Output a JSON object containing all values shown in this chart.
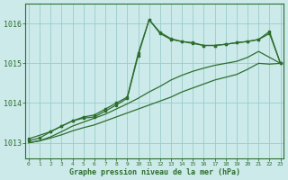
{
  "bg_color": "#cceaea",
  "grid_color": "#99cccc",
  "line_color": "#2d6e2d",
  "title": "Graphe pression niveau de la mer (hPa)",
  "xlabel_ticks": [
    0,
    1,
    2,
    3,
    4,
    5,
    6,
    7,
    8,
    9,
    10,
    11,
    12,
    13,
    14,
    15,
    16,
    17,
    18,
    19,
    20,
    21,
    22,
    23
  ],
  "yticks": [
    1013,
    1014,
    1015,
    1016
  ],
  "ylim": [
    1012.6,
    1016.5
  ],
  "xlim": [
    -0.3,
    23.3
  ],
  "line1_x": [
    0,
    1,
    2,
    3,
    4,
    5,
    6,
    7,
    8,
    9,
    10,
    11,
    12,
    13,
    14,
    15,
    16,
    17,
    18,
    19,
    20,
    21,
    22,
    23
  ],
  "line1_y": [
    1013.0,
    1013.05,
    1013.12,
    1013.2,
    1013.3,
    1013.38,
    1013.45,
    1013.55,
    1013.65,
    1013.75,
    1013.85,
    1013.95,
    1014.05,
    1014.15,
    1014.28,
    1014.38,
    1014.48,
    1014.58,
    1014.65,
    1014.72,
    1014.85,
    1015.0,
    1014.98,
    1015.0
  ],
  "line2_x": [
    0,
    1,
    2,
    3,
    4,
    5,
    6,
    7,
    8,
    9,
    10,
    11,
    12,
    13,
    14,
    15,
    16,
    17,
    18,
    19,
    20,
    21,
    22,
    23
  ],
  "line2_y": [
    1013.0,
    1013.05,
    1013.15,
    1013.28,
    1013.42,
    1013.52,
    1013.62,
    1013.72,
    1013.85,
    1013.98,
    1014.12,
    1014.28,
    1014.42,
    1014.58,
    1014.7,
    1014.8,
    1014.88,
    1014.95,
    1015.0,
    1015.05,
    1015.15,
    1015.3,
    1015.15,
    1015.0
  ],
  "line3_x": [
    0,
    1,
    2,
    3,
    4,
    5,
    6,
    7,
    8,
    9,
    10,
    11,
    12,
    13,
    14,
    15,
    16,
    17,
    18,
    19,
    20,
    21,
    22,
    23
  ],
  "line3_y": [
    1013.05,
    1013.12,
    1013.28,
    1013.42,
    1013.55,
    1013.62,
    1013.65,
    1013.8,
    1013.95,
    1014.12,
    1015.2,
    1016.1,
    1015.75,
    1015.6,
    1015.55,
    1015.5,
    1015.45,
    1015.45,
    1015.48,
    1015.52,
    1015.55,
    1015.6,
    1015.75,
    1015.0
  ],
  "line4_x": [
    0,
    2,
    3,
    4,
    5,
    6,
    7,
    8,
    9,
    10,
    11,
    12,
    13,
    14,
    15,
    16,
    17,
    18,
    19,
    20,
    21,
    22,
    23
  ],
  "line4_y": [
    1013.1,
    1013.28,
    1013.42,
    1013.55,
    1013.65,
    1013.7,
    1013.85,
    1014.0,
    1014.15,
    1015.25,
    1016.1,
    1015.78,
    1015.62,
    1015.55,
    1015.52,
    1015.45,
    1015.45,
    1015.48,
    1015.52,
    1015.55,
    1015.6,
    1015.8,
    1015.0
  ]
}
